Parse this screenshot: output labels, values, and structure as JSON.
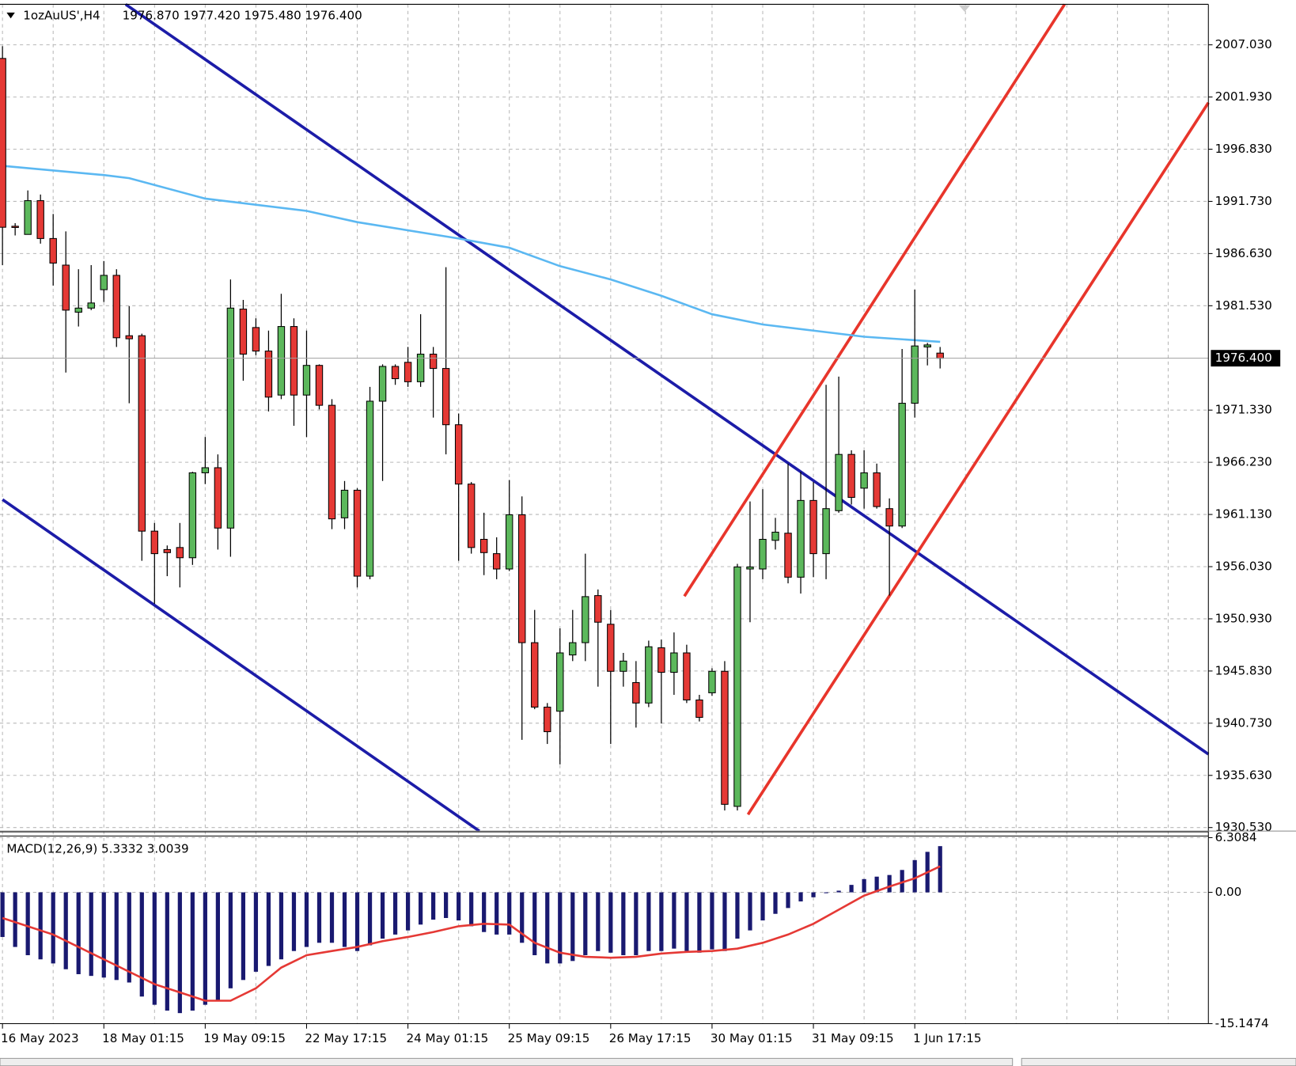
{
  "chart_data": [
    {
      "type": "candlestick",
      "title": "1ozAuUS',H4",
      "subtitle": "1976.870 1977.420 1975.480 1976.400",
      "categories": [
        "16 May 2023",
        null,
        null,
        null,
        null,
        null,
        null,
        null,
        "18 May 01:15",
        null,
        null,
        null,
        null,
        null,
        null,
        null,
        "19 May 09:15",
        null,
        null,
        null,
        null,
        null,
        null,
        null,
        "22 May 17:15",
        null,
        null,
        null,
        null,
        null,
        null,
        null,
        "24 May 01:15",
        null,
        null,
        null,
        null,
        null,
        null,
        null,
        "25 May 09:15",
        null,
        null,
        null,
        null,
        null,
        null,
        null,
        "26 May 17:15",
        null,
        null,
        null,
        null,
        null,
        null,
        null,
        "30 May 01:15",
        null,
        null,
        null,
        null,
        null,
        null,
        null,
        "31 May 09:15",
        null,
        null,
        null,
        null,
        null,
        null,
        null,
        "1 Jun 17:15",
        null,
        null
      ],
      "open": [
        2005.7,
        1989.3,
        1988.5,
        1991.8,
        1988.1,
        1985.5,
        1980.9,
        1981.3,
        1983.1,
        1984.5,
        1978.6,
        1978.6,
        1959.5,
        1957.7,
        1957.9,
        1956.9,
        1965.2,
        1965.7,
        1959.8,
        1981.2,
        1979.4,
        1977.1,
        1972.8,
        1979.5,
        1972.8,
        1975.7,
        1971.8,
        1960.8,
        1963.5,
        1955.1,
        1972.2,
        1975.6,
        1976.0,
        1974.1,
        1976.8,
        1975.4,
        1969.9,
        1964.1,
        1958.7,
        1957.3,
        1955.8,
        1961.1,
        1948.6,
        1942.3,
        1941.9,
        1947.4,
        1948.6,
        1953.2,
        1950.4,
        1945.8,
        1944.7,
        1942.7,
        1948.1,
        1945.7,
        1947.6,
        1943.0,
        1943.7,
        1945.8,
        1932.6,
        1955.8,
        1955.8,
        1958.6,
        1959.3,
        1955.0,
        1962.5,
        1957.3,
        1961.5,
        1967.0,
        1963.7,
        1965.2,
        1961.7,
        1960.0,
        1972.0,
        1977.5,
        1976.9
      ],
      "high": [
        2006.9,
        1989.6,
        1992.8,
        1992.4,
        1990.5,
        1988.8,
        1985.1,
        1985.5,
        1985.9,
        1985.1,
        1981.5,
        1978.8,
        1960.3,
        1958.1,
        1960.3,
        1965.3,
        1968.7,
        1967.0,
        1984.1,
        1982.1,
        1980.3,
        1979.1,
        1982.7,
        1980.3,
        1979.1,
        1975.8,
        1972.4,
        1964.4,
        1963.7,
        1973.6,
        1975.8,
        1975.8,
        1977.5,
        1980.7,
        1977.5,
        1985.3,
        1971.0,
        1964.3,
        1961.3,
        1958.9,
        1964.5,
        1962.9,
        1951.8,
        1942.7,
        1950.0,
        1951.8,
        1957.3,
        1953.8,
        1951.8,
        1947.6,
        1946.8,
        1948.8,
        1948.9,
        1949.6,
        1948.4,
        1943.5,
        1946.1,
        1946.8,
        1956.3,
        1962.4,
        1963.6,
        1960.8,
        1966.1,
        1965.3,
        1964.3,
        1973.8,
        1974.6,
        1967.4,
        1967.4,
        1966.1,
        1962.7,
        1977.3,
        1983.1,
        1977.9,
        1977.5
      ],
      "low": [
        1985.5,
        1988.4,
        1988.5,
        1987.6,
        1983.5,
        1975.0,
        1979.5,
        1981.1,
        1981.9,
        1977.5,
        1972.0,
        1956.6,
        1952.4,
        1955.1,
        1954.0,
        1956.2,
        1964.1,
        1957.7,
        1957.0,
        1974.2,
        1976.7,
        1971.2,
        1972.4,
        1969.8,
        1968.7,
        1971.4,
        1959.7,
        1959.7,
        1954.0,
        1954.8,
        1964.4,
        1973.8,
        1973.6,
        1973.6,
        1970.6,
        1967.0,
        1956.6,
        1957.3,
        1955.2,
        1954.8,
        1955.6,
        1939.1,
        1942.1,
        1938.7,
        1936.7,
        1946.8,
        1946.8,
        1944.3,
        1938.7,
        1944.3,
        1940.3,
        1942.3,
        1940.7,
        1943.5,
        1942.7,
        1940.9,
        1943.4,
        1932.2,
        1932.2,
        1950.6,
        1954.8,
        1957.7,
        1954.4,
        1953.4,
        1955.0,
        1954.8,
        1961.3,
        1962.1,
        1961.7,
        1961.7,
        1953.2,
        1959.8,
        1970.6,
        1975.7,
        1975.4
      ],
      "close": [
        1989.2,
        1989.2,
        1991.8,
        1988.1,
        1985.7,
        1981.1,
        1981.3,
        1981.8,
        1984.5,
        1978.4,
        1978.3,
        1959.5,
        1957.3,
        1957.4,
        1956.9,
        1965.2,
        1965.7,
        1959.8,
        1981.3,
        1976.8,
        1977.1,
        1972.6,
        1979.5,
        1972.8,
        1975.7,
        1971.8,
        1960.7,
        1963.5,
        1955.1,
        1972.2,
        1975.6,
        1974.4,
        1974.1,
        1976.8,
        1975.4,
        1969.9,
        1964.1,
        1957.9,
        1957.4,
        1955.8,
        1961.1,
        1948.6,
        1942.3,
        1939.9,
        1947.6,
        1948.6,
        1953.1,
        1950.6,
        1945.8,
        1946.8,
        1942.7,
        1948.2,
        1945.7,
        1947.6,
        1943.0,
        1941.3,
        1945.8,
        1932.8,
        1956.0,
        1956.0,
        1958.7,
        1959.4,
        1955.0,
        1962.5,
        1957.3,
        1961.7,
        1967.0,
        1962.8,
        1965.2,
        1961.9,
        1960.0,
        1972.0,
        1977.6,
        1977.7,
        1976.4
      ],
      "up_color": "#5cb85c",
      "down_color": "#e53935",
      "overlays": [
        {
          "color": "#5bb8f2",
          "x": [
            0,
            8,
            10,
            16,
            24,
            28,
            36,
            40,
            44,
            48,
            52,
            56,
            60,
            64,
            68,
            74
          ],
          "values": [
            1995.2,
            1994.3,
            1994.0,
            1992.0,
            1990.8,
            1989.7,
            1988.1,
            1987.2,
            1985.4,
            1984.1,
            1982.5,
            1980.7,
            1979.7,
            1979.1,
            1978.5,
            1978.0
          ]
        }
      ],
      "last": {
        "value": 1976.4,
        "label": "1976.400"
      },
      "ylim": [
        1930.19,
        2010.99
      ],
      "yticks": [
        {
          "value": 2007.03,
          "label": "2007.030"
        },
        {
          "value": 2001.93,
          "label": "2001.930"
        },
        {
          "value": 1996.83,
          "label": "1996.830"
        },
        {
          "value": 1991.73,
          "label": "1991.730"
        },
        {
          "value": 1986.63,
          "label": "1986.630"
        },
        {
          "value": 1981.53,
          "label": "1981.530"
        },
        {
          "value": 1971.33,
          "label": "1971.330"
        },
        {
          "value": 1966.23,
          "label": "1966.230"
        },
        {
          "value": 1961.13,
          "label": "1961.130"
        },
        {
          "value": 1956.03,
          "label": "1956.030"
        },
        {
          "value": 1950.93,
          "label": "1950.930"
        },
        {
          "value": 1945.83,
          "label": "1945.830"
        },
        {
          "value": 1940.73,
          "label": "1940.730"
        },
        {
          "value": 1935.63,
          "label": "1935.630"
        },
        {
          "value": 1930.53,
          "label": "1930.530"
        }
      ],
      "grid": true
    },
    {
      "type": "macd",
      "title": "MACD(12,26,9) 5.3332 3.0039",
      "series": [
        {
          "color": "#191970",
          "values": [
            -5.15,
            -6.3,
            -7.25,
            -7.73,
            -8.2,
            -8.87,
            -9.44,
            -9.64,
            -9.83,
            -10.11,
            -10.4,
            -12.02,
            -12.97,
            -13.64,
            -13.93,
            -13.64,
            -12.97,
            -12.5,
            -11.07,
            -10.11,
            -9.16,
            -8.49,
            -7.73,
            -6.77,
            -6.3,
            -5.82,
            -5.82,
            -6.3,
            -6.77,
            -6.11,
            -5.34,
            -4.87,
            -4.39,
            -3.72,
            -3.15,
            -2.96,
            -3.24,
            -3.91,
            -4.58,
            -4.87,
            -4.87,
            -5.82,
            -7.25,
            -8.2,
            -8.2,
            -7.92,
            -7.25,
            -6.77,
            -6.96,
            -7.25,
            -7.25,
            -6.77,
            -6.77,
            -6.49,
            -6.77,
            -6.96,
            -6.58,
            -6.77,
            -5.34,
            -4.39,
            -3.24,
            -2.48,
            -1.81,
            -1.05,
            -0.57,
            -0.1,
            0.19,
            0.86,
            1.53,
            1.81,
            2.0,
            2.58,
            3.72,
            4.67,
            5.33
          ]
        },
        {
          "color": "#e53935",
          "x": [
            0,
            4,
            8,
            12,
            14,
            16,
            18,
            20,
            22,
            24,
            26,
            28,
            30,
            32,
            34,
            36,
            38,
            40,
            42,
            44,
            46,
            48,
            50,
            52,
            54,
            56,
            58,
            60,
            62,
            64,
            66,
            68,
            70,
            72,
            74
          ],
          "values": [
            -2.96,
            -4.87,
            -7.73,
            -10.59,
            -11.54,
            -12.5,
            -12.5,
            -11.07,
            -8.68,
            -7.25,
            -6.77,
            -6.3,
            -5.63,
            -5.15,
            -4.58,
            -3.91,
            -3.63,
            -3.72,
            -5.82,
            -6.96,
            -7.44,
            -7.54,
            -7.44,
            -7.06,
            -6.87,
            -6.77,
            -6.49,
            -5.82,
            -4.87,
            -3.63,
            -2.0,
            -0.38,
            0.67,
            1.62,
            3.0
          ]
        }
      ],
      "ylim": [
        -15.1474,
        6.3084
      ],
      "yticks": [
        6.3084,
        {
          "value": 0,
          "label": "0.00"
        },
        -15.1474
      ],
      "grid": true
    }
  ]
}
